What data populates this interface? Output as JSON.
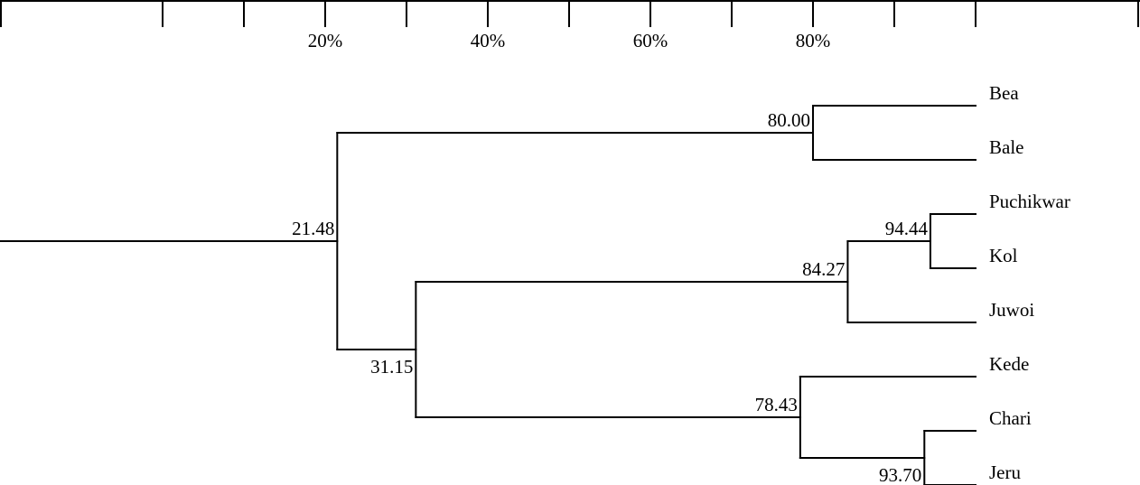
{
  "scale": {
    "labels": [
      "20%",
      "40%",
      "60%",
      "80%"
    ],
    "label_values": [
      20,
      40,
      60,
      80
    ],
    "tick_values": [
      -20,
      0,
      10,
      20,
      30,
      40,
      50,
      60,
      70,
      80,
      90,
      100,
      120
    ]
  },
  "leaves": [
    "Bea",
    "Bale",
    "Puchikwar",
    "Kol",
    "Juwoi",
    "Kede",
    "Chari",
    "Jeru"
  ],
  "nodes": [
    {
      "id": "n_beabale",
      "label": "80.00",
      "value": 80.0,
      "children": [
        "Bea",
        "Bale"
      ]
    },
    {
      "id": "n_puchkol",
      "label": "94.44",
      "value": 94.44,
      "children": [
        "Puchikwar",
        "Kol"
      ]
    },
    {
      "id": "n_juwoi",
      "label": "84.27",
      "value": 84.27,
      "children": [
        "n_puchkol",
        "Juwoi"
      ]
    },
    {
      "id": "n_charijeru",
      "label": "93.70",
      "value": 93.7,
      "children": [
        "Chari",
        "Jeru"
      ]
    },
    {
      "id": "n_kede",
      "label": "78.43",
      "value": 78.43,
      "children": [
        "Kede",
        "n_charijeru"
      ]
    },
    {
      "id": "n_south",
      "label": "31.15",
      "value": 31.15,
      "children": [
        "n_juwoi",
        "n_kede"
      ]
    },
    {
      "id": "n_root",
      "label": "21.48",
      "value": 21.48,
      "children": [
        "n_beabale",
        "n_south"
      ]
    }
  ],
  "colors": {
    "line": "#000000",
    "text": "#000000",
    "background": "#ffffff"
  }
}
